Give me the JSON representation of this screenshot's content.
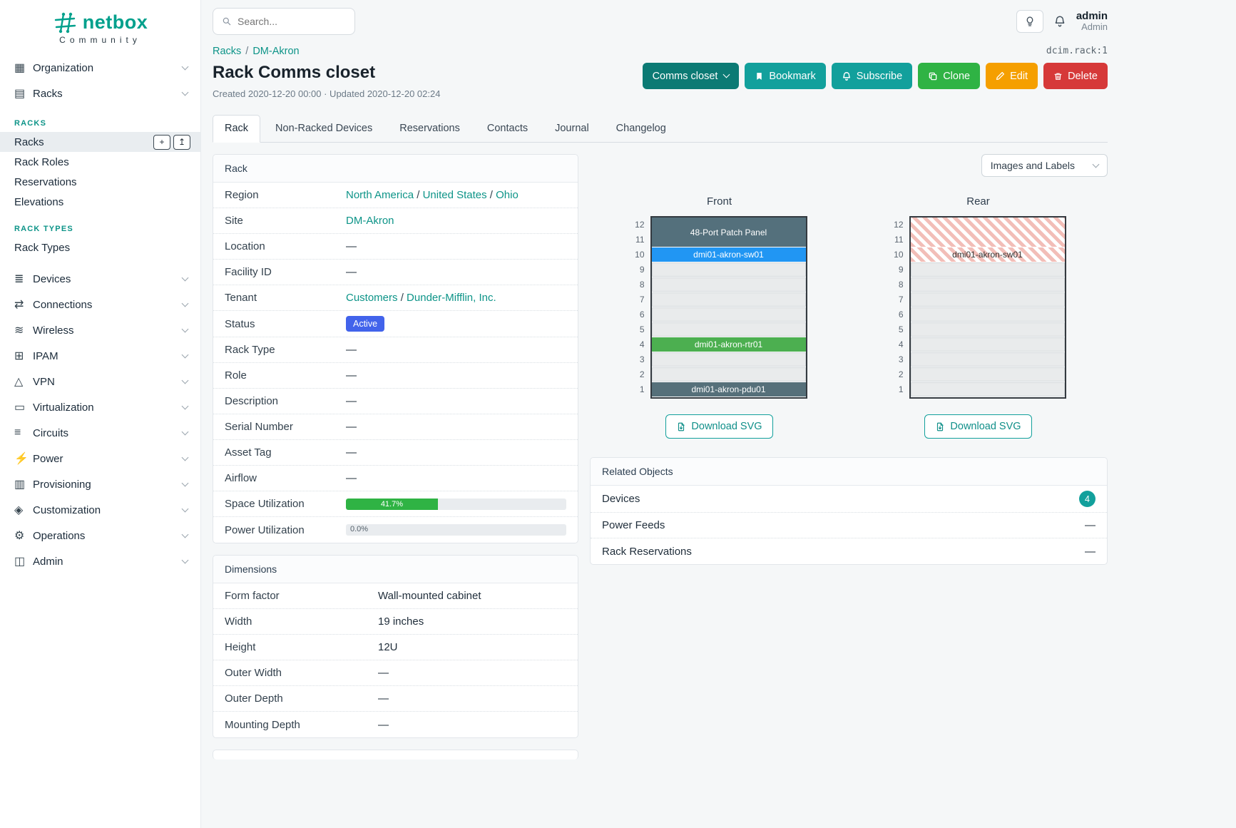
{
  "colors": {
    "brand_teal": "#00a08c",
    "link_teal": "#0d9488",
    "primary_button": "#12a09c",
    "tag_button": "#0c7a74",
    "clone_green": "#2fb344",
    "edit_orange": "#f59f00",
    "delete_red": "#d63939",
    "status_active_blue": "#4263eb",
    "progress_green": "#2fb344",
    "device_dark_slate": "#54707c",
    "device_blue": "#2196f3",
    "device_green": "#4caf50"
  },
  "brand": {
    "name": "netbox",
    "subtitle": "Community"
  },
  "topbar": {
    "search_placeholder": "Search...",
    "user_name": "admin",
    "user_role": "Admin"
  },
  "sidebar": {
    "top_items": [
      {
        "label": "Organization",
        "icon": "building-icon",
        "glyph": "▦"
      },
      {
        "label": "Racks",
        "icon": "rack-icon",
        "glyph": "▤"
      }
    ],
    "groups": [
      {
        "title": "RACKS",
        "items": [
          {
            "label": "Racks",
            "active": true,
            "actions": [
              {
                "icon": "plus-icon",
                "glyph": "+"
              },
              {
                "icon": "import-icon",
                "glyph": "↥"
              }
            ]
          },
          {
            "label": "Rack Roles"
          },
          {
            "label": "Reservations"
          },
          {
            "label": "Elevations"
          }
        ]
      },
      {
        "title": "RACK TYPES",
        "items": [
          {
            "label": "Rack Types"
          }
        ]
      }
    ],
    "bottom_items": [
      {
        "label": "Devices",
        "icon": "devices-icon",
        "glyph": "≣"
      },
      {
        "label": "Connections",
        "icon": "connections-icon",
        "glyph": "⇄"
      },
      {
        "label": "Wireless",
        "icon": "wireless-icon",
        "glyph": "≋"
      },
      {
        "label": "IPAM",
        "icon": "ipam-icon",
        "glyph": "⊞"
      },
      {
        "label": "VPN",
        "icon": "vpn-icon",
        "glyph": "△"
      },
      {
        "label": "Virtualization",
        "icon": "virtualization-icon",
        "glyph": "▭"
      },
      {
        "label": "Circuits",
        "icon": "circuits-icon",
        "glyph": "≡"
      },
      {
        "label": "Power",
        "icon": "power-icon",
        "glyph": "⚡"
      },
      {
        "label": "Provisioning",
        "icon": "provisioning-icon",
        "glyph": "▥"
      },
      {
        "label": "Customization",
        "icon": "customization-icon",
        "glyph": "◈"
      },
      {
        "label": "Operations",
        "icon": "operations-icon",
        "glyph": "⚙"
      },
      {
        "label": "Admin",
        "icon": "admin-icon",
        "glyph": "◫"
      }
    ]
  },
  "breadcrumb": {
    "items": [
      "Racks",
      "DM-Akron"
    ],
    "object_id": "dcim.rack:1"
  },
  "header": {
    "title": "Rack Comms closet",
    "meta": "Created 2020-12-20 00:00 · Updated 2020-12-20 02:24",
    "actions": {
      "tag": "Comms closet",
      "bookmark": "Bookmark",
      "subscribe": "Subscribe",
      "clone": "Clone",
      "edit": "Edit",
      "delete": "Delete"
    }
  },
  "tabs": [
    {
      "label": "Rack",
      "active": true
    },
    {
      "label": "Non-Racked Devices"
    },
    {
      "label": "Reservations"
    },
    {
      "label": "Contacts"
    },
    {
      "label": "Journal"
    },
    {
      "label": "Changelog"
    }
  ],
  "rack_card": {
    "title": "Rack",
    "rows": [
      {
        "label": "Region",
        "kind": "links",
        "links": [
          "North America",
          "United States",
          "Ohio"
        ]
      },
      {
        "label": "Site",
        "kind": "links",
        "links": [
          "DM-Akron"
        ]
      },
      {
        "label": "Location",
        "kind": "dash"
      },
      {
        "label": "Facility ID",
        "kind": "dash"
      },
      {
        "label": "Tenant",
        "kind": "links",
        "links": [
          "Customers",
          "Dunder-Mifflin, Inc."
        ]
      },
      {
        "label": "Status",
        "kind": "badge",
        "text": "Active",
        "color": "#4263eb"
      },
      {
        "label": "Rack Type",
        "kind": "dash"
      },
      {
        "label": "Role",
        "kind": "dash"
      },
      {
        "label": "Description",
        "kind": "dash"
      },
      {
        "label": "Serial Number",
        "kind": "dash"
      },
      {
        "label": "Asset Tag",
        "kind": "dash"
      },
      {
        "label": "Airflow",
        "kind": "dash"
      },
      {
        "label": "Space Utilization",
        "kind": "progress",
        "percent": 41.7,
        "text": "41.7%",
        "color": "#2fb344"
      },
      {
        "label": "Power Utilization",
        "kind": "progress",
        "percent": 0,
        "text": "0.0%",
        "color": "#2fb344"
      }
    ]
  },
  "dimensions_card": {
    "title": "Dimensions",
    "rows": [
      {
        "label": "Form factor",
        "value": "Wall-mounted cabinet"
      },
      {
        "label": "Width",
        "value": "19 inches"
      },
      {
        "label": "Height",
        "value": "12U"
      },
      {
        "label": "Outer Width",
        "value": "—"
      },
      {
        "label": "Outer Depth",
        "value": "—"
      },
      {
        "label": "Mounting Depth",
        "value": "—"
      }
    ]
  },
  "elevations": {
    "toggle_label": "Images and Labels",
    "download_label": "Download SVG",
    "units_total": 12,
    "faces": [
      {
        "title": "Front",
        "devices": [
          {
            "unit": 12,
            "span": 2,
            "label": "48-Port Patch Panel",
            "style": "solid",
            "color": "#54707c"
          },
          {
            "unit": 10,
            "span": 1,
            "label": "dmi01-akron-sw01",
            "style": "solid",
            "color": "#2196f3"
          },
          {
            "unit": 4,
            "span": 1,
            "label": "dmi01-akron-rtr01",
            "style": "solid",
            "color": "#4caf50"
          },
          {
            "unit": 1,
            "span": 1,
            "label": "dmi01-akron-pdu01",
            "style": "solid",
            "color": "#56707a"
          }
        ]
      },
      {
        "title": "Rear",
        "devices": [
          {
            "unit": 12,
            "span": 2,
            "label": "",
            "style": "hatched"
          },
          {
            "unit": 10,
            "span": 1,
            "label": "dmi01-akron-sw01",
            "style": "hatched"
          }
        ]
      }
    ]
  },
  "related_objects": {
    "title": "Related Objects",
    "rows": [
      {
        "label": "Devices",
        "kind": "count",
        "count": "4"
      },
      {
        "label": "Power Feeds",
        "kind": "dash"
      },
      {
        "label": "Rack Reservations",
        "kind": "dash"
      }
    ]
  }
}
